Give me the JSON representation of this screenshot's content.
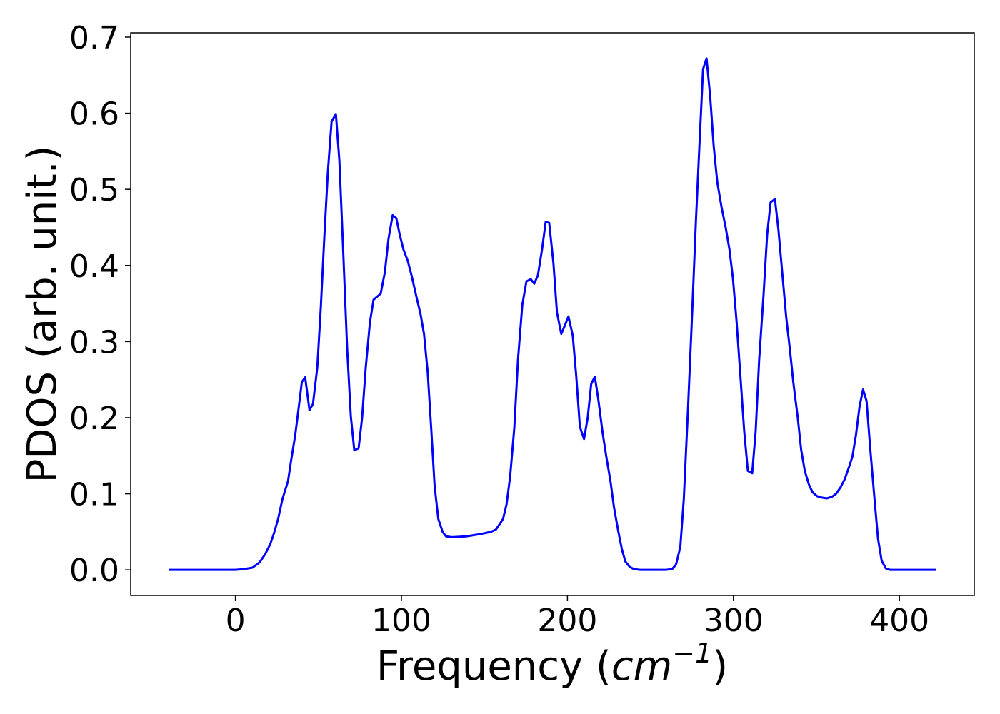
{
  "chart_data": {
    "type": "line",
    "xlabel": [
      "Frequency (",
      "cm",
      "−1",
      ")"
    ],
    "ylabel": "PDOS (arb. unit.)",
    "xlim": [
      -63.1,
      445.1
    ],
    "ylim": [
      -0.0336,
      0.7056
    ],
    "xticks": [
      0,
      100,
      200,
      300,
      400
    ],
    "yticks": [
      {
        "value": 0,
        "label": "0.0"
      },
      0.1,
      0.2,
      0.3,
      0.4,
      0.5,
      0.6,
      0.7
    ],
    "grid": false,
    "series": [
      {
        "color": "#0000ff",
        "x": [
          -40,
          -20,
          0,
          5,
          10.3,
          14.6,
          18,
          21,
          23.2,
          25.7,
          28.3,
          31.7,
          33.4,
          36,
          38.2,
          40,
          42,
          44.6,
          46.7,
          49.3,
          51.4,
          53.6,
          55.7,
          57.9,
          60.5,
          62.6,
          64.7,
          67.3,
          69.5,
          71.6,
          74.2,
          76.3,
          78.5,
          81,
          83.2,
          87.5,
          90,
          92.2,
          94.7,
          96.9,
          99,
          101.2,
          103.8,
          106.3,
          108.9,
          111.5,
          113.6,
          115.8,
          117.9,
          120,
          122.2,
          124.8,
          126.9,
          130.3,
          138.9,
          147.5,
          153.9,
          156.9,
          159.1,
          161.2,
          163.3,
          165.5,
          168,
          170.2,
          172.8,
          175.3,
          177.9,
          180,
          182.2,
          184.7,
          186.9,
          189,
          191.6,
          193.7,
          196.3,
          198.4,
          200.6,
          203.2,
          205.3,
          207.5,
          210,
          212.2,
          214.3,
          216.5,
          218.6,
          221.2,
          223.4,
          225.9,
          228,
          230.6,
          232.8,
          234.9,
          237.5,
          240,
          244,
          259,
          263,
          265.4,
          268,
          270.1,
          272.7,
          275.3,
          277.4,
          279.5,
          281.7,
          283.8,
          286,
          288.1,
          290.3,
          292.8,
          295.4,
          297.6,
          299.7,
          301.8,
          304,
          306.5,
          308.7,
          311.3,
          313.4,
          315.5,
          318.1,
          320.3,
          322.4,
          325,
          327.1,
          329.3,
          331.8,
          334,
          336.1,
          338.7,
          340.8,
          343,
          345.5,
          347.7,
          350.3,
          353.3,
          356.3,
          359.3,
          361.8,
          364.4,
          367,
          369.6,
          371.7,
          373.8,
          376,
          378.1,
          380.2,
          382.4,
          385,
          387.1,
          389.3,
          391.8,
          394.4,
          421.9
        ],
        "values": [
          0,
          0,
          0,
          0.001,
          0.003,
          0.01,
          0.021,
          0.034,
          0.048,
          0.067,
          0.093,
          0.117,
          0.142,
          0.177,
          0.215,
          0.247,
          0.253,
          0.21,
          0.218,
          0.266,
          0.344,
          0.44,
          0.524,
          0.589,
          0.599,
          0.538,
          0.43,
          0.29,
          0.202,
          0.157,
          0.16,
          0.2,
          0.266,
          0.325,
          0.355,
          0.363,
          0.391,
          0.435,
          0.466,
          0.462,
          0.44,
          0.421,
          0.406,
          0.385,
          0.36,
          0.336,
          0.31,
          0.26,
          0.187,
          0.11,
          0.067,
          0.05,
          0.044,
          0.043,
          0.044,
          0.047,
          0.05,
          0.053,
          0.06,
          0.067,
          0.086,
          0.123,
          0.187,
          0.276,
          0.348,
          0.379,
          0.382,
          0.376,
          0.387,
          0.421,
          0.457,
          0.456,
          0.402,
          0.338,
          0.31,
          0.321,
          0.333,
          0.308,
          0.255,
          0.188,
          0.172,
          0.2,
          0.244,
          0.254,
          0.224,
          0.18,
          0.149,
          0.117,
          0.083,
          0.051,
          0.027,
          0.011,
          0.004,
          0.001,
          0,
          0,
          0.001,
          0.007,
          0.03,
          0.093,
          0.215,
          0.346,
          0.458,
          0.557,
          0.658,
          0.672,
          0.622,
          0.557,
          0.509,
          0.477,
          0.449,
          0.421,
          0.383,
          0.329,
          0.261,
          0.182,
          0.13,
          0.127,
          0.182,
          0.276,
          0.36,
          0.44,
          0.483,
          0.487,
          0.447,
          0.393,
          0.332,
          0.29,
          0.246,
          0.201,
          0.158,
          0.13,
          0.112,
          0.102,
          0.097,
          0.095,
          0.094,
          0.096,
          0.1,
          0.108,
          0.119,
          0.135,
          0.149,
          0.177,
          0.215,
          0.237,
          0.222,
          0.16,
          0.093,
          0.041,
          0.012,
          0.002,
          0,
          0
        ]
      }
    ]
  }
}
